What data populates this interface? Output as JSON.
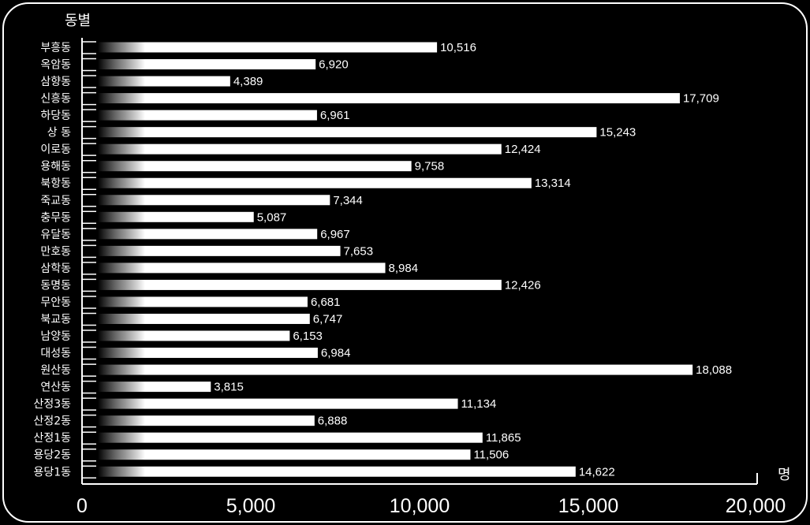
{
  "chart_data": {
    "type": "bar",
    "orientation": "horizontal",
    "title": "",
    "ylabel": "동별",
    "xlabel": "명",
    "xlim": [
      0,
      20000
    ],
    "xticks": [
      0,
      5000,
      10000,
      15000,
      20000
    ],
    "xtick_labels": [
      "0",
      "5,000",
      "10,000",
      "15,000",
      "20,000"
    ],
    "categories": [
      "부흥동",
      "옥암동",
      "삼향동",
      "신흥동",
      "하당동",
      "상 동",
      "이로동",
      "용해동",
      "북항동",
      "죽교동",
      "충무동",
      "유달동",
      "만호동",
      "삼학동",
      "동명동",
      "무안동",
      "북교동",
      "남양동",
      "대성동",
      "원산동",
      "연산동",
      "산정3동",
      "산정2동",
      "산정1동",
      "용당2동",
      "용당1동"
    ],
    "values": [
      10516,
      6920,
      4389,
      17709,
      6961,
      15243,
      12424,
      9758,
      13314,
      7344,
      5087,
      6967,
      7653,
      8984,
      12426,
      6681,
      6747,
      6153,
      6984,
      18088,
      3815,
      11134,
      6888,
      11865,
      11506,
      14622
    ],
    "value_labels": [
      "10,516",
      "6,920",
      "4,389",
      "17,709",
      "6,961",
      "15,243",
      "12,424",
      "9,758",
      "13,314",
      "7,344",
      "5,087",
      "6,967",
      "7,653",
      "8,984",
      "12,426",
      "6,681",
      "6,747",
      "6,153",
      "6,984",
      "18,088",
      "3,815",
      "11,134",
      "6,888",
      "11,865",
      "11,506",
      "14,622"
    ],
    "grid": false,
    "legend": "none",
    "colors": {
      "background": "#000000",
      "bar": "#ffffff",
      "text": "#ffffff"
    }
  }
}
